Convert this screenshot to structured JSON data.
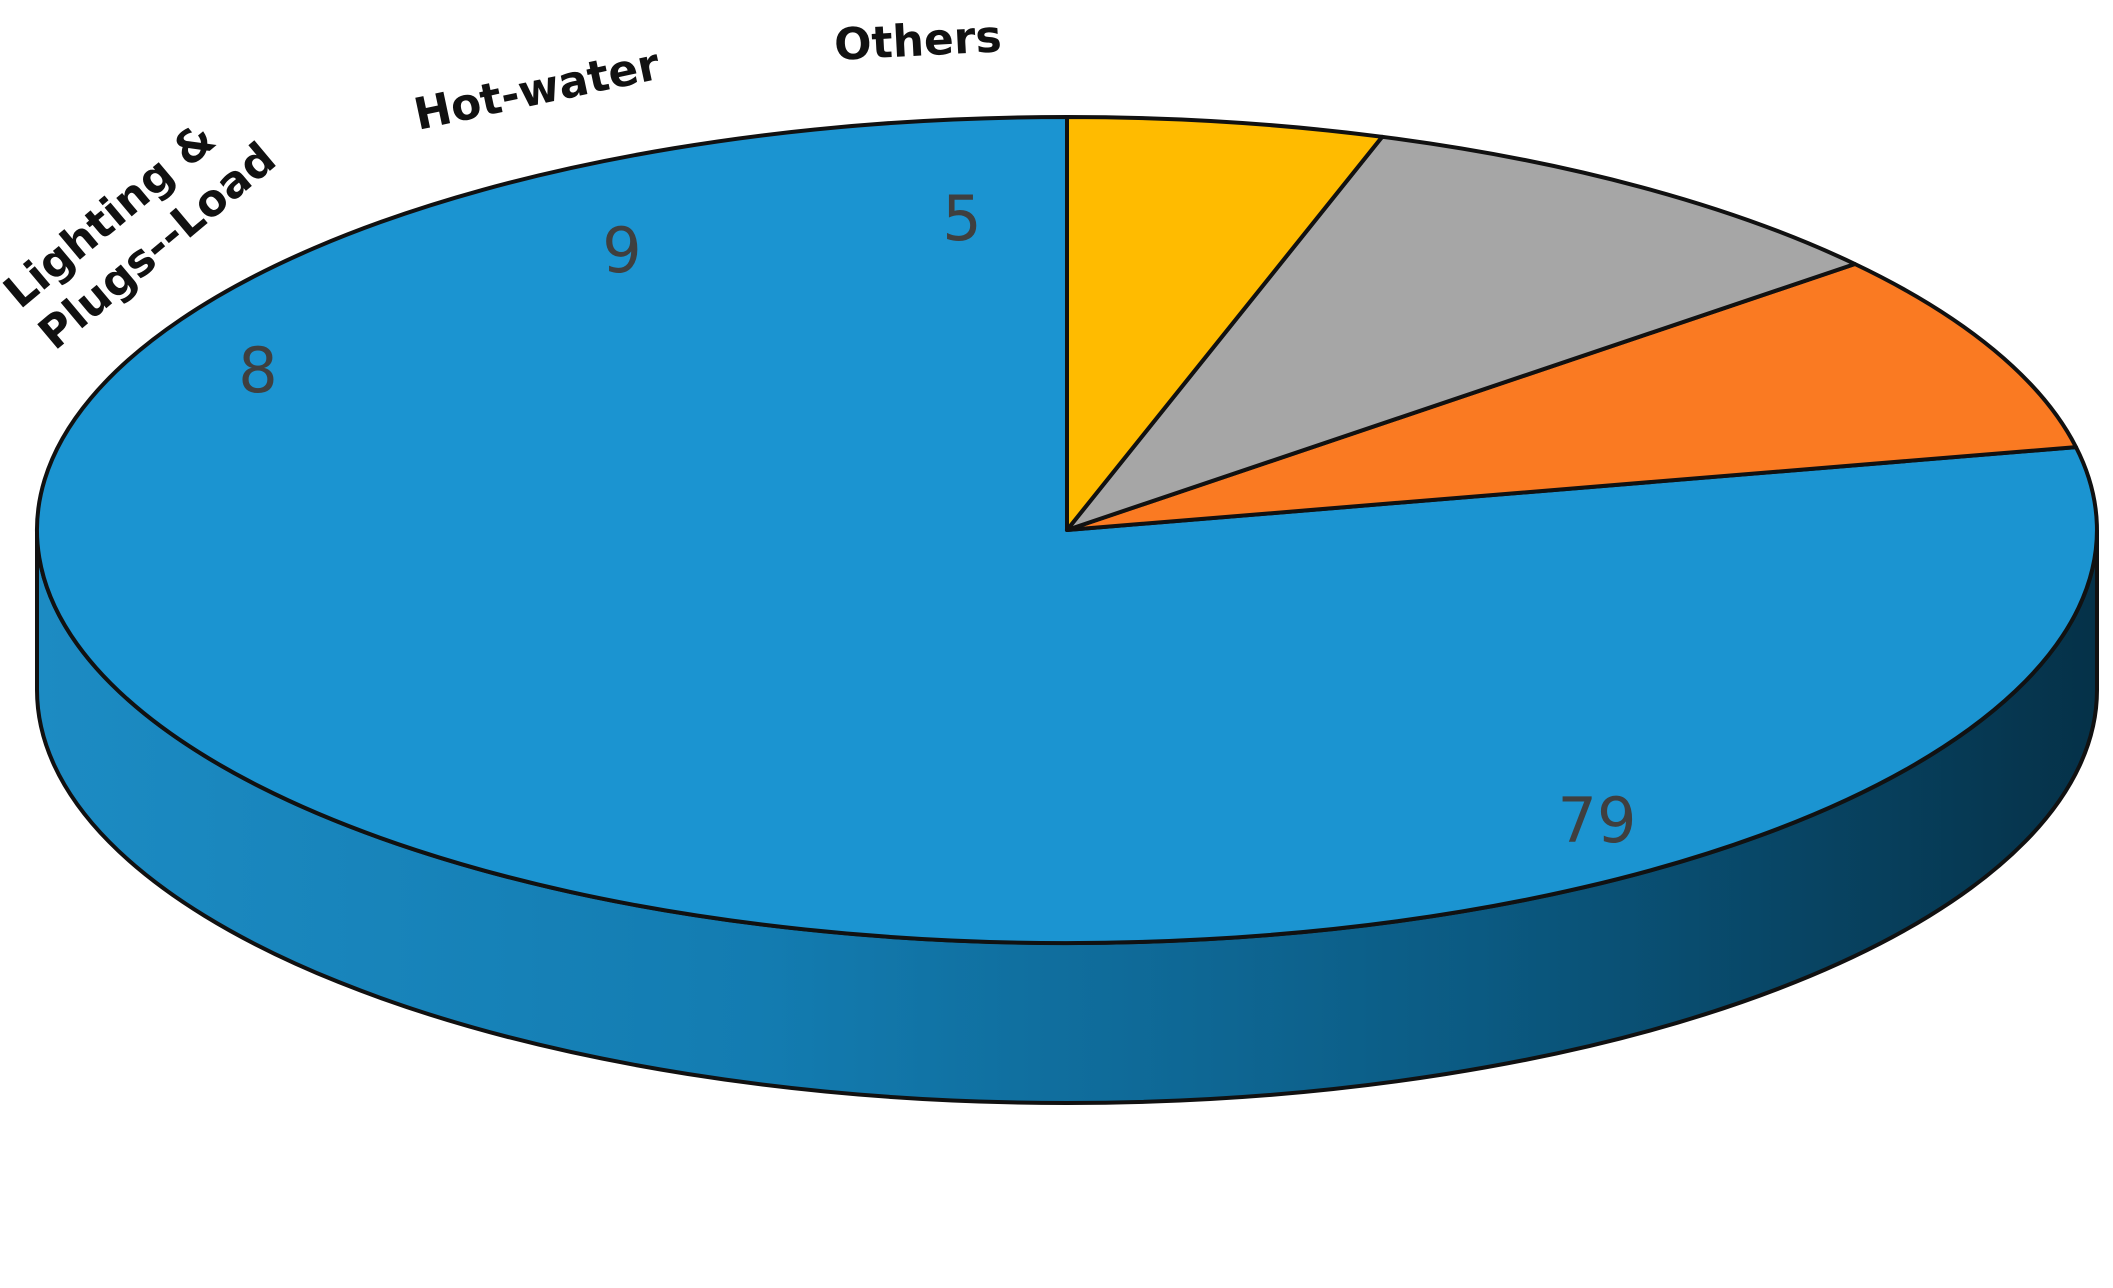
{
  "chart_data": {
    "type": "pie",
    "style": "3d",
    "start_angle": "12 o'clock",
    "direction": "counterclockwise",
    "series": [
      {
        "name": "",
        "values": [
          79,
          8,
          9,
          5
        ],
        "labels": [
          "",
          "Lighting & Plugs--Load",
          "Hot-water",
          "Others"
        ],
        "colors": [
          "#1b94d1",
          "#fa7a22",
          "#a6a6a6",
          "#ffbb00"
        ]
      }
    ],
    "data_labels": [
      "79",
      "8",
      "9",
      "5"
    ],
    "legend": "none"
  }
}
